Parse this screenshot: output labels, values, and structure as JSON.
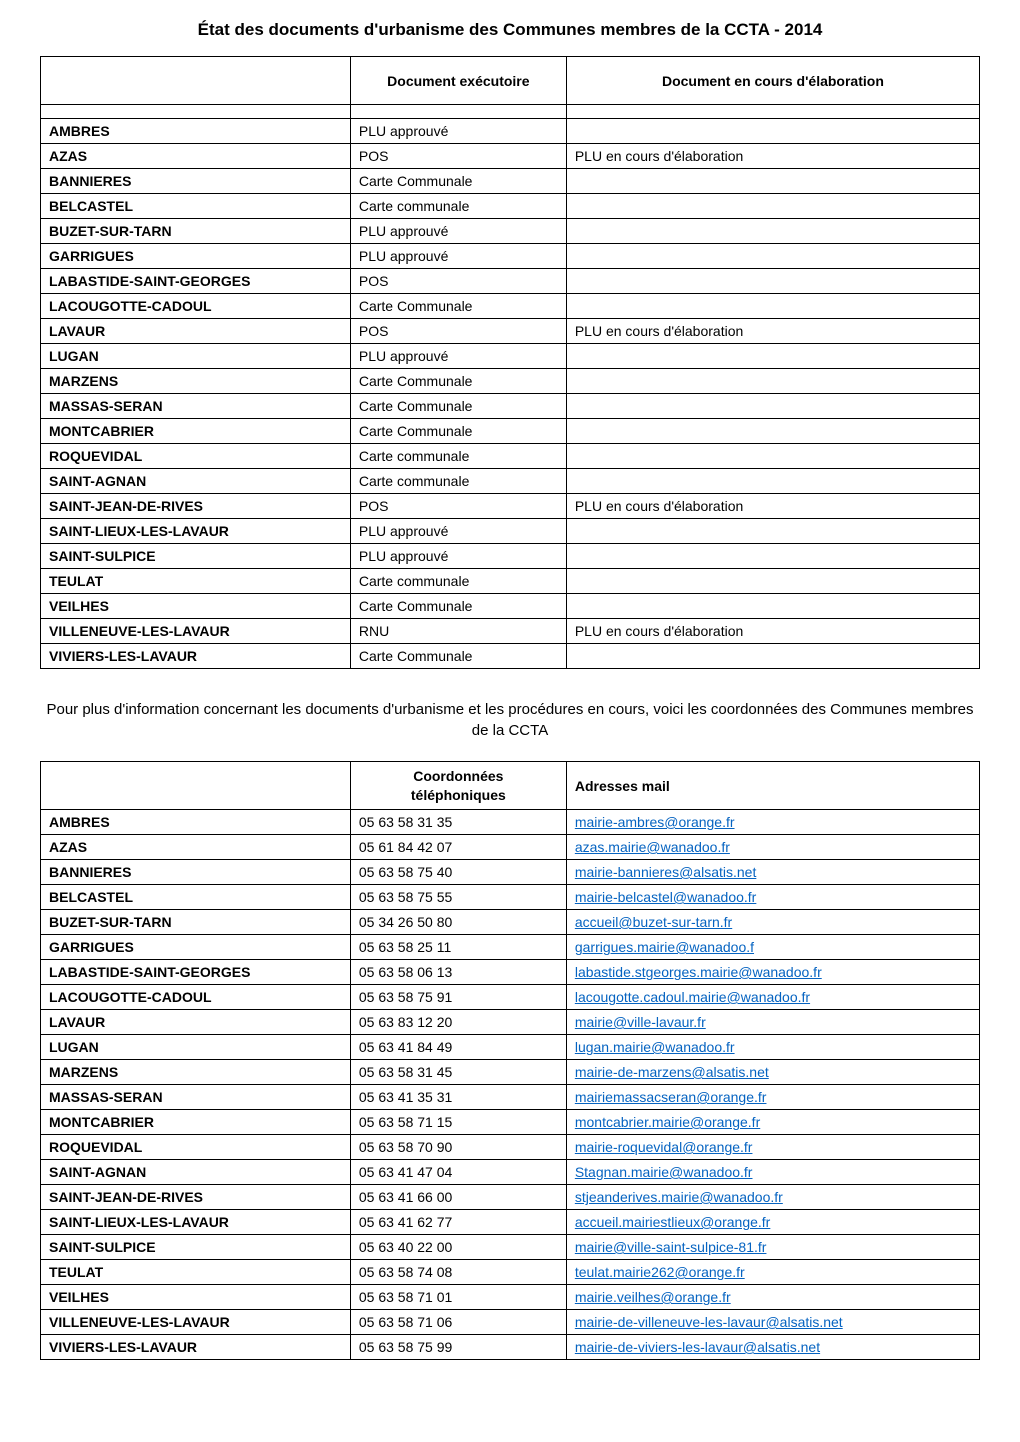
{
  "page_title": "État des documents d'urbanisme des Communes membres de la CCTA - 2014",
  "table1": {
    "headers": {
      "col1": "",
      "col2": "Document exécutoire",
      "col3": "Document en cours d'élaboration"
    },
    "rows": [
      {
        "commune": "AMBRES",
        "doc": "PLU approuvé",
        "elab": ""
      },
      {
        "commune": "AZAS",
        "doc": "POS",
        "elab": "PLU en cours d'élaboration"
      },
      {
        "commune": "BANNIERES",
        "doc": "Carte Communale",
        "elab": ""
      },
      {
        "commune": "BELCASTEL",
        "doc": "Carte communale",
        "elab": ""
      },
      {
        "commune": "BUZET-SUR-TARN",
        "doc": "PLU approuvé",
        "elab": ""
      },
      {
        "commune": "GARRIGUES",
        "doc": "PLU approuvé",
        "elab": ""
      },
      {
        "commune": "LABASTIDE-SAINT-GEORGES",
        "doc": "POS",
        "elab": ""
      },
      {
        "commune": "LACOUGOTTE-CADOUL",
        "doc": "Carte Communale",
        "elab": ""
      },
      {
        "commune": "LAVAUR",
        "doc": "POS",
        "elab": "PLU en cours d'élaboration"
      },
      {
        "commune": "LUGAN",
        "doc": "PLU approuvé",
        "elab": ""
      },
      {
        "commune": "MARZENS",
        "doc": "Carte Communale",
        "elab": ""
      },
      {
        "commune": "MASSAS-SERAN",
        "doc": "Carte Communale",
        "elab": ""
      },
      {
        "commune": "MONTCABRIER",
        "doc": "Carte Communale",
        "elab": ""
      },
      {
        "commune": "ROQUEVIDAL",
        "doc": "Carte communale",
        "elab": ""
      },
      {
        "commune": "SAINT-AGNAN",
        "doc": "Carte communale",
        "elab": ""
      },
      {
        "commune": "SAINT-JEAN-DE-RIVES",
        "doc": "POS",
        "elab": "PLU en cours d'élaboration"
      },
      {
        "commune": "SAINT-LIEUX-LES-LAVAUR",
        "doc": "PLU approuvé",
        "elab": ""
      },
      {
        "commune": "SAINT-SULPICE",
        "doc": "PLU approuvé",
        "elab": ""
      },
      {
        "commune": "TEULAT",
        "doc": "Carte communale",
        "elab": ""
      },
      {
        "commune": "VEILHES",
        "doc": "Carte Communale",
        "elab": ""
      },
      {
        "commune": "VILLENEUVE-LES-LAVAUR",
        "doc": "RNU",
        "elab": "PLU en cours d'élaboration"
      },
      {
        "commune": "VIVIERS-LES-LAVAUR",
        "doc": "Carte Communale",
        "elab": ""
      }
    ]
  },
  "intro_text": "Pour plus d'information concernant les documents d'urbanisme et les procédures en cours, voici les coordonnées des Communes membres de la CCTA",
  "table2": {
    "headers": {
      "col1": "",
      "col2_line1": "Coordonnées",
      "col2_line2": "téléphoniques",
      "col3": "Adresses mail"
    },
    "rows": [
      {
        "commune": "AMBRES",
        "phone": "05 63 58 31 35",
        "mail": "mairie-ambres@orange.fr"
      },
      {
        "commune": "AZAS",
        "phone": "05 61 84 42 07",
        "mail": "azas.mairie@wanadoo.fr"
      },
      {
        "commune": "BANNIERES",
        "phone": "05 63 58 75 40",
        "mail": "mairie-bannieres@alsatis.net"
      },
      {
        "commune": "BELCASTEL",
        "phone": "05 63 58 75 55",
        "mail": "mairie-belcastel@wanadoo.fr"
      },
      {
        "commune": "BUZET-SUR-TARN",
        "phone": "05 34 26 50 80",
        "mail": "accueil@buzet-sur-tarn.fr"
      },
      {
        "commune": "GARRIGUES",
        "phone": "05 63 58 25 11",
        "mail": "garrigues.mairie@wanadoo.f"
      },
      {
        "commune": "LABASTIDE-SAINT-GEORGES",
        "phone": "05 63 58 06 13",
        "mail": "labastide.stgeorges.mairie@wanadoo.fr"
      },
      {
        "commune": "LACOUGOTTE-CADOUL",
        "phone": "05 63 58 75 91",
        "mail": "lacougotte.cadoul.mairie@wanadoo.fr"
      },
      {
        "commune": "LAVAUR",
        "phone": "05 63 83 12 20",
        "mail": "mairie@ville-lavaur.fr"
      },
      {
        "commune": "LUGAN",
        "phone": "05 63 41 84 49",
        "mail": "lugan.mairie@wanadoo.fr"
      },
      {
        "commune": "MARZENS",
        "phone": "05 63 58 31 45",
        "mail": "mairie-de-marzens@alsatis.net"
      },
      {
        "commune": "MASSAS-SERAN",
        "phone": "05 63 41 35 31",
        "mail": "mairiemassacseran@orange.fr"
      },
      {
        "commune": "MONTCABRIER",
        "phone": "05 63 58 71 15",
        "mail": "montcabrier.mairie@orange.fr"
      },
      {
        "commune": "ROQUEVIDAL",
        "phone": "05 63 58 70 90",
        "mail": "mairie-roquevidal@orange.fr"
      },
      {
        "commune": "SAINT-AGNAN",
        "phone": "05 63 41 47 04",
        "mail": "Stagnan.mairie@wanadoo.fr"
      },
      {
        "commune": "SAINT-JEAN-DE-RIVES",
        "phone": "05 63 41 66 00",
        "mail": "stjeanderives.mairie@wanadoo.fr"
      },
      {
        "commune": "SAINT-LIEUX-LES-LAVAUR",
        "phone": " 05 63 41 62 77",
        "mail": "accueil.mairiestlieux@orange.fr"
      },
      {
        "commune": "SAINT-SULPICE",
        "phone": "05 63 40 22 00",
        "mail": "mairie@ville-saint-sulpice-81.fr"
      },
      {
        "commune": "TEULAT",
        "phone": "05 63 58 74 08",
        "mail": "teulat.mairie262@orange.fr"
      },
      {
        "commune": "VEILHES",
        "phone": "05 63 58 71 01",
        "mail": "mairie.veilhes@orange.fr"
      },
      {
        "commune": "VILLENEUVE-LES-LAVAUR",
        "phone": "05 63 58 71 06",
        "mail": "mairie-de-villeneuve-les-lavaur@alsatis.net"
      },
      {
        "commune": "VIVIERS-LES-LAVAUR",
        "phone": "05 63 58 75 99",
        "mail": "mairie-de-viviers-les-lavaur@alsatis.net"
      }
    ]
  }
}
